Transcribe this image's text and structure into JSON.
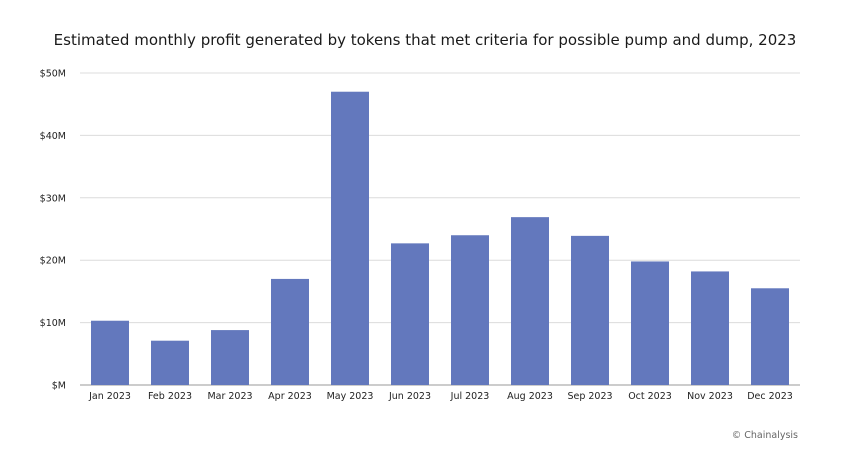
{
  "chart_data": {
    "type": "bar",
    "title": "Estimated monthly profit generated by tokens that met criteria for possible pump and dump, 2023",
    "xlabel": "",
    "ylabel": "",
    "categories": [
      "Jan 2023",
      "Feb 2023",
      "Mar 2023",
      "Apr 2023",
      "May 2023",
      "Jun 2023",
      "Jul 2023",
      "Aug 2023",
      "Sep 2023",
      "Oct 2023",
      "Nov 2023",
      "Dec 2023"
    ],
    "values": [
      10.3,
      7.1,
      8.8,
      17.0,
      47.0,
      22.7,
      24.0,
      26.9,
      23.9,
      19.8,
      18.2,
      15.5
    ],
    "unit": "$M",
    "ylim": [
      0,
      50
    ],
    "yticks": [
      0,
      10,
      20,
      30,
      40,
      50
    ],
    "ytick_labels": [
      "$M",
      "$10M",
      "$20M",
      "$30M",
      "$40M",
      "$50M"
    ],
    "grid": true,
    "bar_color": "#6378bd",
    "grid_color": "#dcdcdc"
  },
  "credit": "© Chainalysis"
}
